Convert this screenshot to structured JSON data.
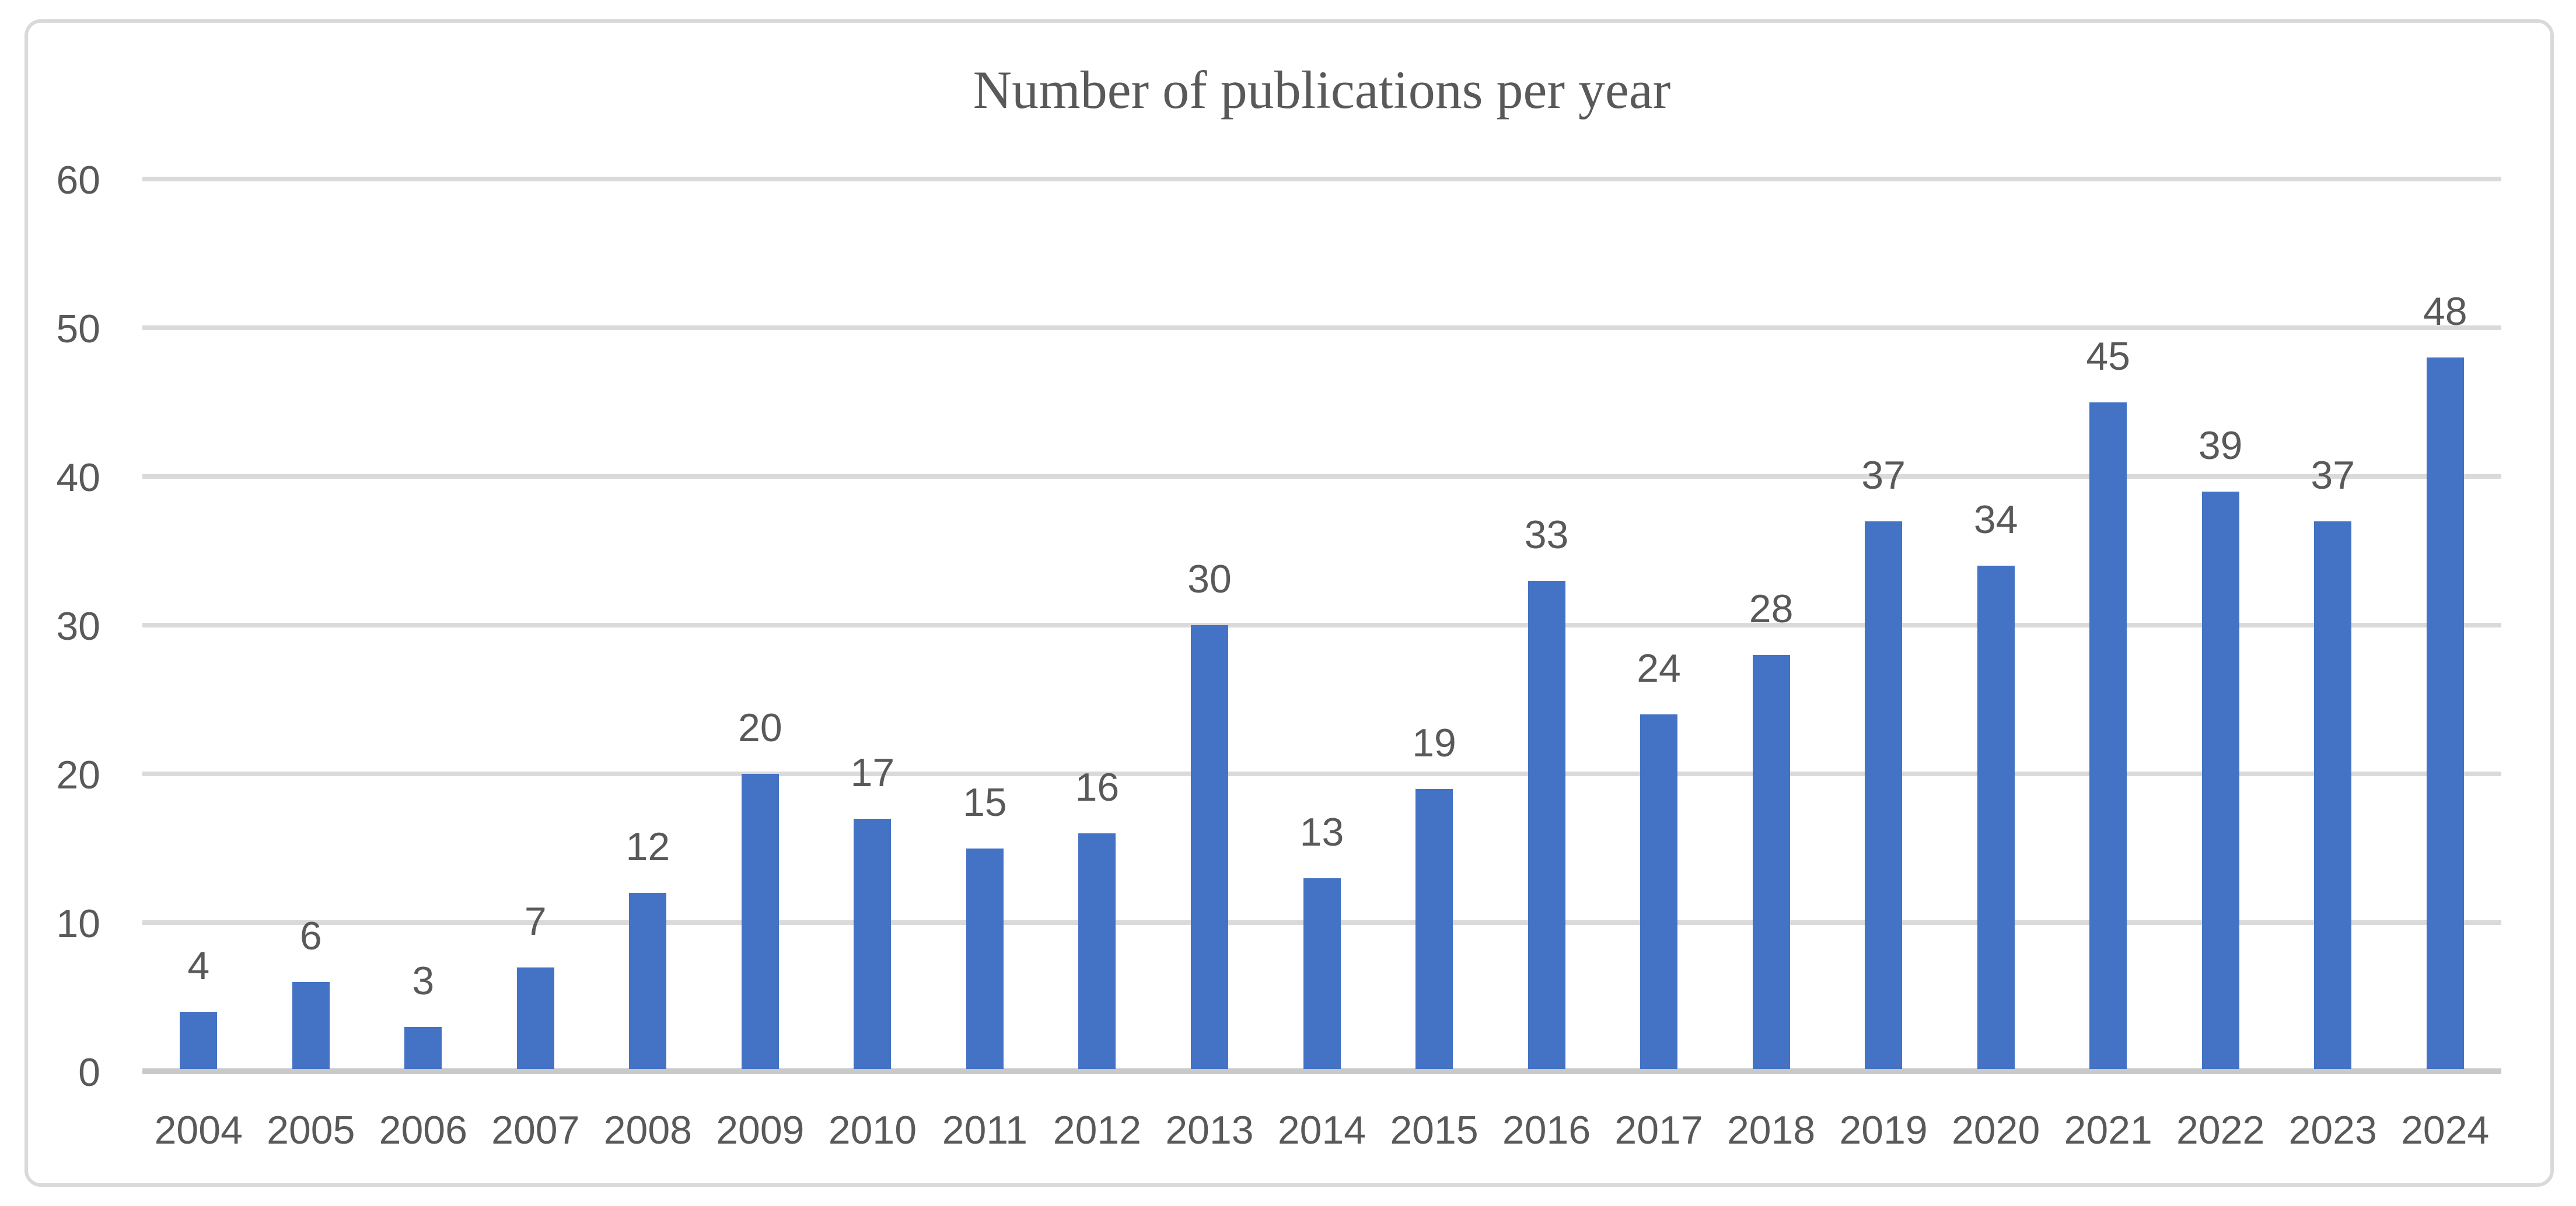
{
  "chart_data": {
    "type": "bar",
    "title": "Number of publications per year",
    "categories": [
      "2004",
      "2005",
      "2006",
      "2007",
      "2008",
      "2009",
      "2010",
      "2011",
      "2012",
      "2013",
      "2014",
      "2015",
      "2016",
      "2017",
      "2018",
      "2019",
      "2020",
      "2021",
      "2022",
      "2023",
      "2024"
    ],
    "values": [
      4,
      6,
      3,
      7,
      12,
      20,
      17,
      15,
      16,
      30,
      13,
      19,
      33,
      24,
      28,
      37,
      34,
      45,
      39,
      37,
      48
    ],
    "data_labels_shown": true,
    "xlabel": "",
    "ylabel": "",
    "ylim": [
      0,
      60
    ],
    "yticks": [
      0,
      10,
      20,
      30,
      40,
      50,
      60
    ],
    "grid": "horizontal",
    "legend": "none",
    "colors": {
      "bar": "#4472C4",
      "gridline": "#DADADA",
      "axis_line": "#C9C9C9",
      "labels": "#595959",
      "title": "#595959",
      "frame_border": "#D9D9D9",
      "background": "#FFFFFF"
    }
  }
}
